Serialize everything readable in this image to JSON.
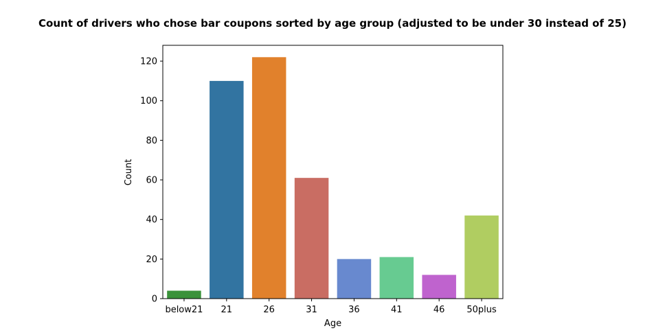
{
  "chart_data": {
    "type": "bar",
    "title": "Count of drivers who chose bar coupons sorted by age group (adjusted to be under 30 instead of 25)",
    "xlabel": "Age",
    "ylabel": "Count",
    "categories": [
      "below21",
      "21",
      "26",
      "31",
      "36",
      "41",
      "46",
      "50plus"
    ],
    "values": [
      4,
      110,
      122,
      61,
      20,
      21,
      12,
      42
    ],
    "colors": [
      "#3a923a",
      "#3274a1",
      "#e1812c",
      "#c96d63",
      "#6889cf",
      "#67cb91",
      "#bf63ce",
      "#b0cd61"
    ],
    "ylim": [
      0,
      128
    ],
    "yticks": [
      0,
      20,
      40,
      60,
      80,
      100,
      120
    ],
    "grid": false,
    "legend": "none"
  }
}
